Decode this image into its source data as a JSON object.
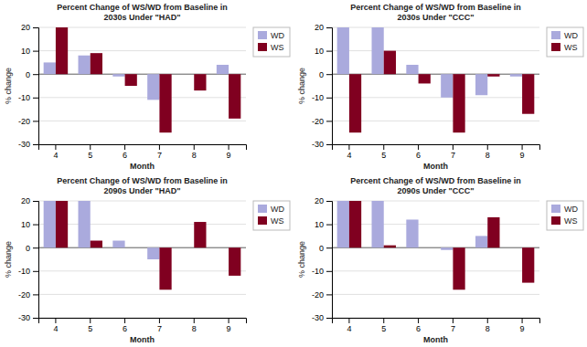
{
  "chart_data": [
    {
      "type": "bar",
      "title": "Percent Change of WS/WD from Baseline in\n2030s Under \"HAD\"",
      "x_label": "Month",
      "y_label": "% change",
      "categories": [
        "4",
        "5",
        "6",
        "7",
        "8",
        "9"
      ],
      "series": [
        {
          "name": "WD",
          "color": "#aaaadd",
          "values": [
            5,
            8,
            -1,
            -11,
            0,
            4
          ]
        },
        {
          "name": "WS",
          "color": "#800020",
          "values": [
            20,
            9,
            -5,
            -25,
            -7,
            -19
          ]
        }
      ],
      "ylim": [
        -30,
        20
      ],
      "yticks": [
        -30,
        -20,
        -10,
        0,
        10,
        20
      ],
      "grid": true,
      "legend": "right"
    },
    {
      "type": "bar",
      "title": "Percent Change of WS/WD from Baseline in\n2030s Under \"CCC\"",
      "x_label": "Month",
      "y_label": "% change",
      "categories": [
        "4",
        "5",
        "6",
        "7",
        "8",
        "9"
      ],
      "series": [
        {
          "name": "WD",
          "color": "#aaaadd",
          "values": [
            20,
            20,
            4,
            -10,
            -9,
            -1
          ]
        },
        {
          "name": "WS",
          "color": "#800020",
          "values": [
            -25,
            10,
            -4,
            -25,
            -1,
            -17
          ]
        }
      ],
      "ylim": [
        -30,
        20
      ],
      "yticks": [
        -30,
        -20,
        -10,
        0,
        10,
        20
      ],
      "grid": true,
      "legend": "right"
    },
    {
      "type": "bar",
      "title": "Percent Change of WS/WD from Baseline in\n2090s Under \"HAD\"",
      "x_label": "Month",
      "y_label": "% change",
      "categories": [
        "4",
        "5",
        "6",
        "7",
        "8",
        "9"
      ],
      "series": [
        {
          "name": "WD",
          "color": "#aaaadd",
          "values": [
            20,
            20,
            3,
            -5,
            0,
            0
          ]
        },
        {
          "name": "WS",
          "color": "#800020",
          "values": [
            20,
            3,
            0,
            -18,
            11,
            -12
          ]
        }
      ],
      "ylim": [
        -30,
        20
      ],
      "yticks": [
        -30,
        -20,
        -10,
        0,
        10,
        20
      ],
      "grid": true,
      "legend": "right"
    },
    {
      "type": "bar",
      "title": "Percent Change of WS/WD from Baseline in\n2090s Under \"CCC\"",
      "x_label": "Month",
      "y_label": "% change",
      "categories": [
        "4",
        "5",
        "6",
        "7",
        "8",
        "9"
      ],
      "series": [
        {
          "name": "WD",
          "color": "#aaaadd",
          "values": [
            20,
            20,
            12,
            -1,
            5,
            0
          ]
        },
        {
          "name": "WS",
          "color": "#800020",
          "values": [
            20,
            1,
            0,
            -18,
            13,
            -15
          ]
        }
      ],
      "ylim": [
        -30,
        20
      ],
      "yticks": [
        -30,
        -20,
        -10,
        0,
        10,
        20
      ],
      "grid": true,
      "legend": "right"
    }
  ]
}
